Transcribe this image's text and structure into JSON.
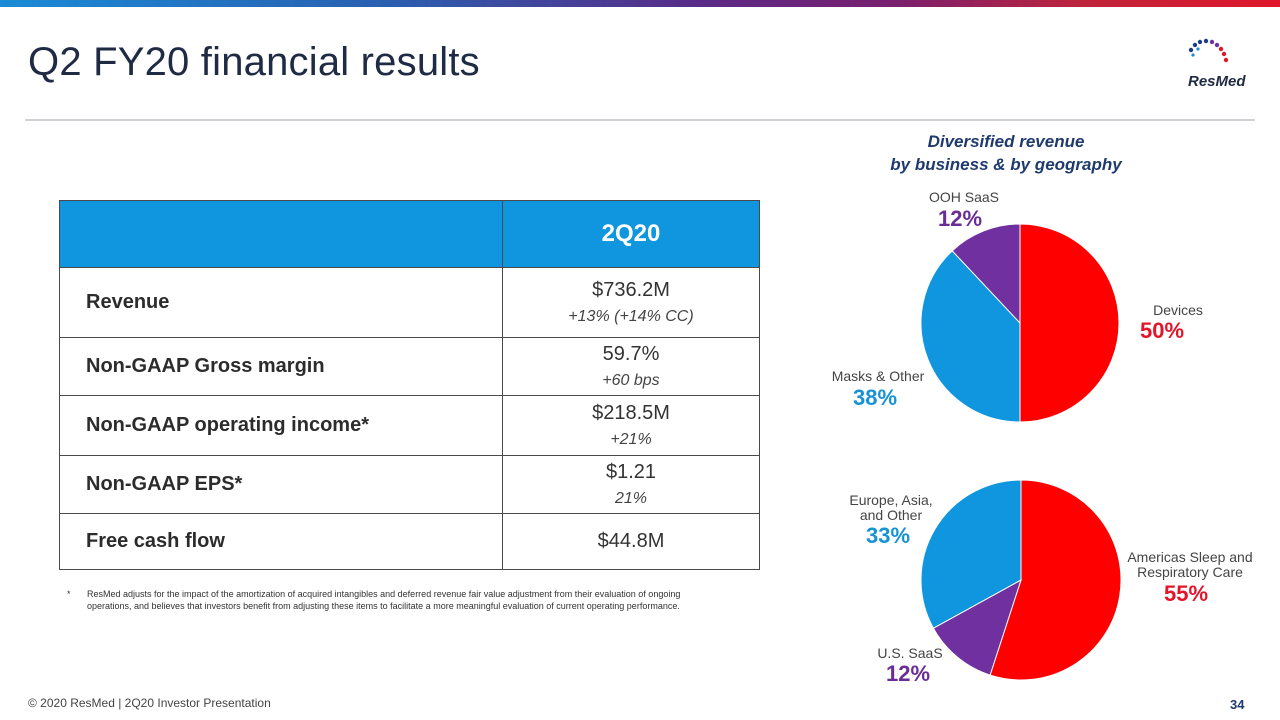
{
  "slide": {
    "title": "Q2 FY20 financial results",
    "logo_text": "ResMed",
    "footer": "© 2020 ResMed  |  2Q20 Investor Presentation",
    "page_number": "34"
  },
  "table": {
    "header": "2Q20",
    "rows": [
      {
        "label": "Revenue",
        "value": "$736.2M",
        "sub": "+13% (+14% CC)"
      },
      {
        "label": "Non-GAAP Gross margin",
        "value": "59.7%",
        "sub": "+60 bps"
      },
      {
        "label": "Non-GAAP operating income*",
        "value": "$218.5M",
        "sub": "+21%"
      },
      {
        "label": "Non-GAAP EPS*",
        "value": "$1.21",
        "sub": "21%"
      },
      {
        "label": "Free cash flow",
        "value": "$44.8M",
        "sub": ""
      }
    ]
  },
  "footnote": {
    "marker": "*",
    "text": "ResMed adjusts for the impact of the amortization of acquired intangibles and deferred revenue fair value adjustment from their evaluation of ongoing operations, and believes that investors benefit from adjusting these items to facilitate a more meaningful evaluation of current operating performance."
  },
  "chart_data": [
    {
      "type": "pie",
      "title": "Diversified revenue by business & by geography",
      "slices": [
        {
          "label": "Devices",
          "value": 50,
          "pct": "50%",
          "color": "#ff0000"
        },
        {
          "label": "Masks & Other",
          "value": 38,
          "pct": "38%",
          "color": "#0f96de"
        },
        {
          "label": "OOH SaaS",
          "value": 12,
          "pct": "12%",
          "color": "#7030a0"
        }
      ]
    },
    {
      "type": "pie",
      "slices": [
        {
          "label": "Americas Sleep and Respiratory Care",
          "value": 55,
          "pct": "55%",
          "color": "#ff0000"
        },
        {
          "label": "U.S. SaaS",
          "value": 12,
          "pct": "12%",
          "color": "#7030a0"
        },
        {
          "label": "Europe, Asia, and Other",
          "value": 33,
          "pct": "33%",
          "color": "#0f96de"
        }
      ]
    }
  ],
  "chart_heading": {
    "line1": "Diversified revenue",
    "line2": "by business & by geography"
  },
  "pie_labels": {
    "ooh_saas": "OOH SaaS",
    "ooh_saas_pct": "12%",
    "devices": "Devices",
    "devices_pct": "50%",
    "masks": "Masks & Other",
    "masks_pct": "38%",
    "europe_line1": "Europe, Asia,",
    "europe_line2": "and Other",
    "europe_pct": "33%",
    "americas_line1": "Americas Sleep and",
    "americas_line2": "Respiratory Care",
    "americas_pct": "55%",
    "us_saas": "U.S. SaaS",
    "us_saas_pct": "12%"
  }
}
